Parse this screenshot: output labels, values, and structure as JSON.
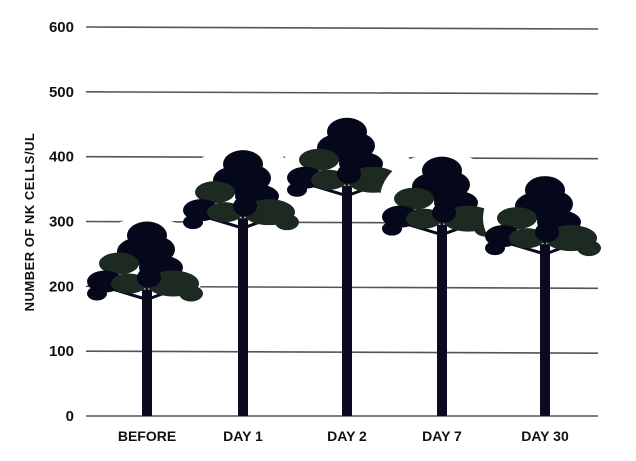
{
  "chart_data": {
    "type": "bar",
    "style": "pictogram-trees",
    "title": "",
    "xlabel": "",
    "ylabel": "NUMBER OF NK CELLS/UL",
    "categories": [
      "BEFORE",
      "DAY 1",
      "DAY 2",
      "DAY 7",
      "DAY 30"
    ],
    "values": [
      300,
      410,
      460,
      400,
      370
    ],
    "ylim": [
      0,
      600
    ],
    "yticks": [
      0,
      100,
      200,
      300,
      400,
      500,
      600
    ],
    "grid": true,
    "colors": {
      "trunk": "#0b0a1f",
      "crown_dark": "#05071a",
      "crown_green": "#1c2a22",
      "grid": "#555555"
    }
  }
}
